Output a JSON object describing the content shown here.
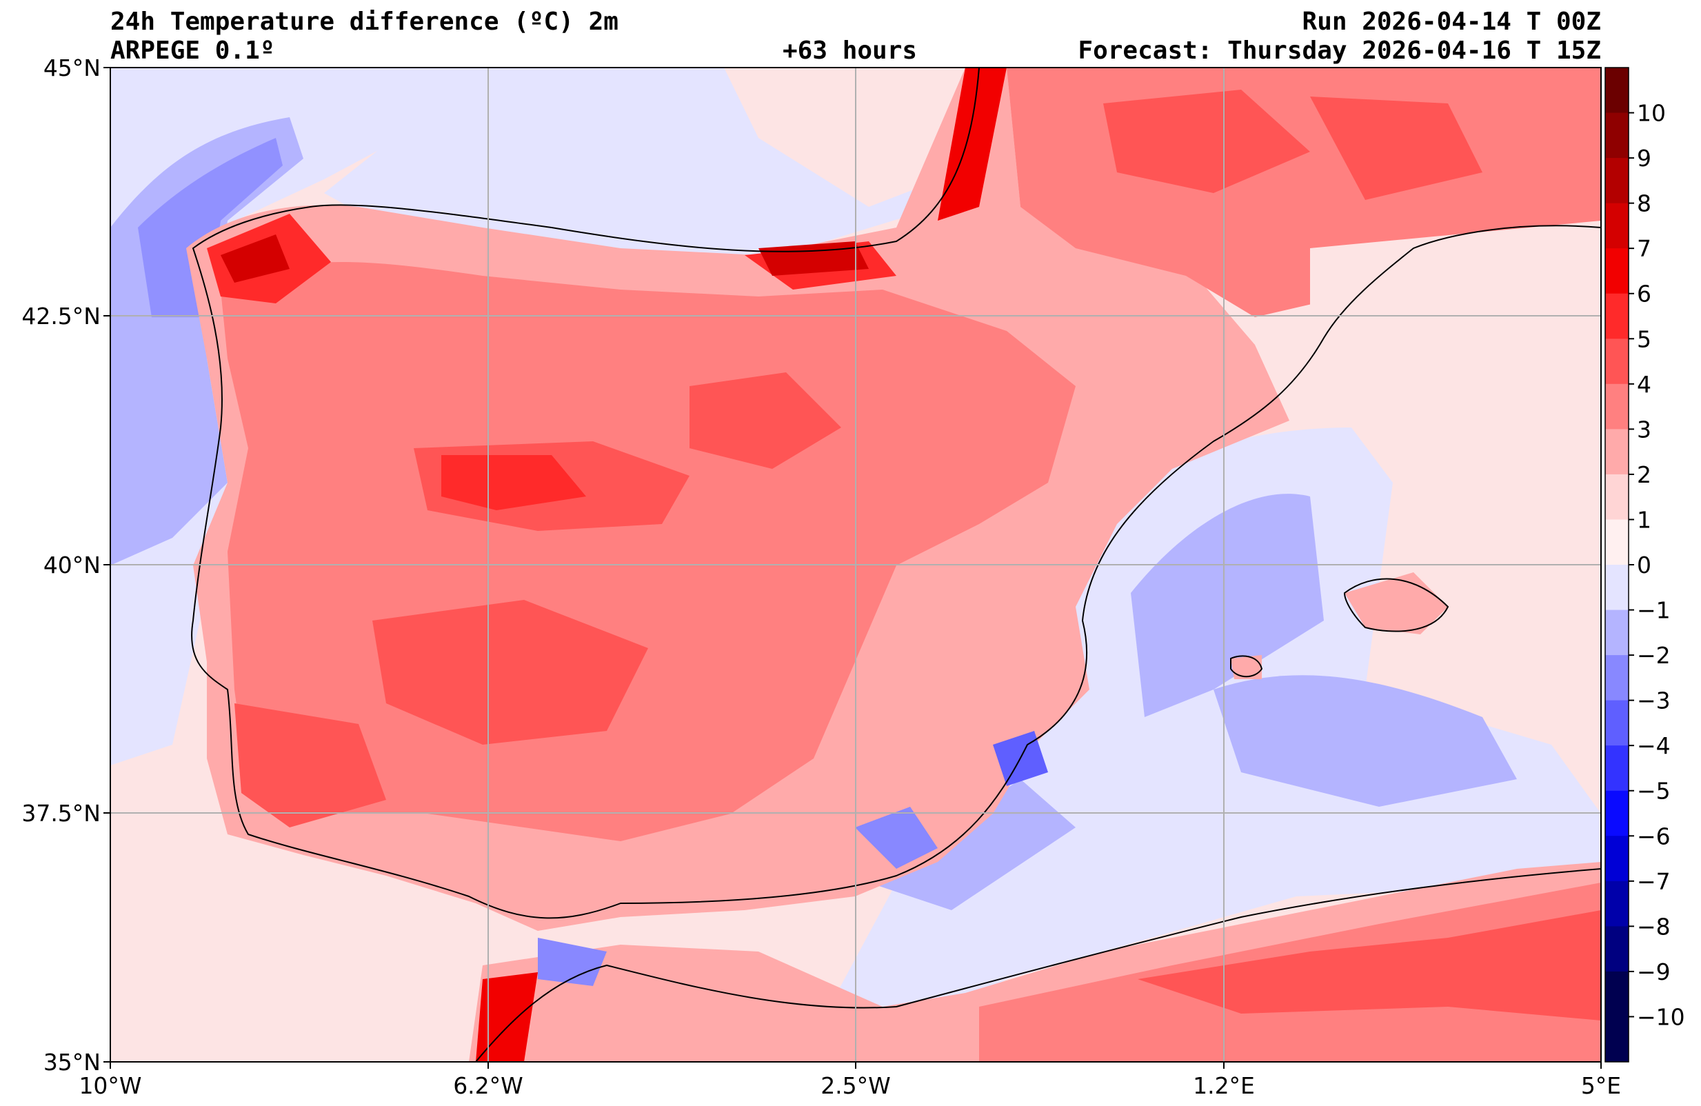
{
  "header": {
    "title_line1": "24h Temperature difference (ºC) 2m",
    "title_line2": "ARPEGE 0.1º",
    "lead_time": "+63 hours",
    "run": "Run 2026-04-14 T 00Z",
    "forecast": "Forecast: Thursday 2026-04-16 T 15Z"
  },
  "axes": {
    "lat_labels": [
      "45°N",
      "42.5°N",
      "40°N",
      "37.5°N",
      "35°N"
    ],
    "lon_labels": [
      "10°W",
      "6.2°W",
      "2.5°W",
      "1.2°E",
      "5°E"
    ]
  },
  "colorbar": {
    "labels": [
      "10",
      "9",
      "8",
      "7",
      "6",
      "5",
      "4",
      "3",
      "2",
      "1",
      "0",
      "−1",
      "−2",
      "−3",
      "−4",
      "−5",
      "−6",
      "−7",
      "−8",
      "−9",
      "−10"
    ],
    "colors_warm": [
      "#6b0000",
      "#8f0000",
      "#b30000",
      "#d40000",
      "#f20000",
      "#ff2a2a",
      "#ff5555",
      "#ff8080",
      "#ffaaaa",
      "#ffd5d5",
      "#fff0f0"
    ],
    "colors_cold": [
      "#e4e4ff",
      "#b4b4ff",
      "#8888ff",
      "#5f5fff",
      "#3333ff",
      "#0a0aff",
      "#0000d6",
      "#0000aa",
      "#000080",
      "#000050"
    ]
  }
}
